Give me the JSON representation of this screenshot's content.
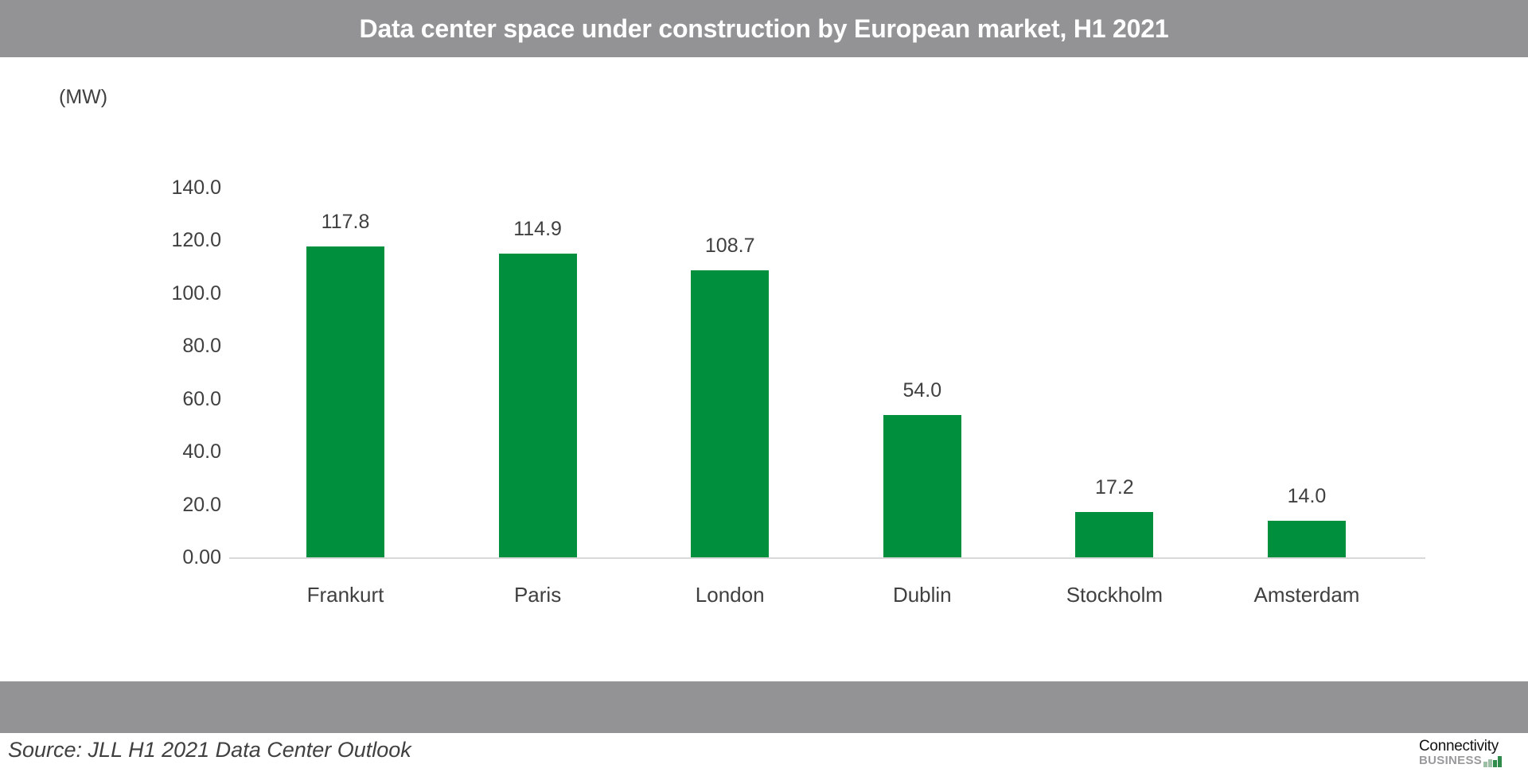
{
  "header": {
    "title": "Data center space under construction by European market, H1 2021"
  },
  "footer": {
    "source": "Source: JLL H1 2021 Data Center Outlook",
    "logo": {
      "line1": "Connectivity",
      "line2": "BUSINESS"
    }
  },
  "colors": {
    "bar": "#00903D",
    "band": "#939396",
    "axis": "#D9D9D9",
    "text": "#404040"
  },
  "chart_data": {
    "type": "bar",
    "title": "Data center space under construction by European market, H1 2021",
    "xlabel": "",
    "ylabel": "(MW)",
    "unit": "MW",
    "categories": [
      "Frankurt",
      "Paris",
      "London",
      "Dublin",
      "Stockholm",
      "Amsterdam"
    ],
    "values": [
      117.8,
      114.9,
      108.7,
      54.0,
      17.2,
      14.0
    ],
    "value_labels": [
      "117.8",
      "114.9",
      "108.7",
      "54.0",
      "17.2",
      "14.0"
    ],
    "ylim": [
      0,
      140
    ],
    "yticks": [
      0,
      20,
      40,
      60,
      80,
      100,
      120,
      140
    ],
    "ytick_labels": [
      "0.00",
      "20.0",
      "40.0",
      "60.0",
      "80.0",
      "100.0",
      "120.0",
      "140.0"
    ],
    "grid": false,
    "legend": null,
    "source": "Source: JLL H1 2021 Data Center Outlook"
  }
}
